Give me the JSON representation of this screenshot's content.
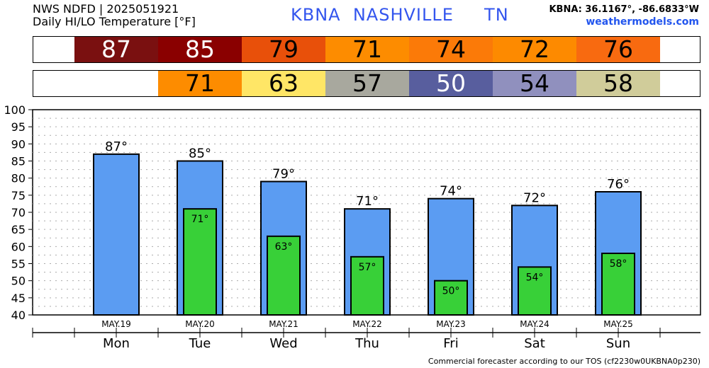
{
  "header": {
    "line1": "NWS NDFD | 2025051921",
    "line2": "Daily HI/LO Temperature [°F]",
    "station": "KBNA  NASHVILLE     TN",
    "coords": "KBNA: 36.1167°, -86.6833°W",
    "site": "weathermodels.com"
  },
  "strips": {
    "hi": [
      {
        "text": "87",
        "bg": "#7a1010",
        "fg": "#ffffff"
      },
      {
        "text": "85",
        "bg": "#8a0000",
        "fg": "#ffffff"
      },
      {
        "text": "79",
        "bg": "#e8500a",
        "fg": "#000000"
      },
      {
        "text": "71",
        "bg": "#fd8c00",
        "fg": "#000000"
      },
      {
        "text": "74",
        "bg": "#fb7a08",
        "fg": "#000000"
      },
      {
        "text": "72",
        "bg": "#fd8a00",
        "fg": "#000000"
      },
      {
        "text": "76",
        "bg": "#f86a10",
        "fg": "#000000"
      }
    ],
    "lo": [
      {
        "text": "71",
        "bg": "#fd8c00",
        "fg": "#000000"
      },
      {
        "text": "63",
        "bg": "#ffe666",
        "fg": "#000000"
      },
      {
        "text": "57",
        "bg": "#a8a89e",
        "fg": "#000000"
      },
      {
        "text": "50",
        "bg": "#585e9e",
        "fg": "#ffffff"
      },
      {
        "text": "54",
        "bg": "#9090be",
        "fg": "#000000"
      },
      {
        "text": "58",
        "bg": "#d0cc9a",
        "fg": "#000000"
      }
    ]
  },
  "chart_data": {
    "type": "bar",
    "ylim": [
      40,
      100
    ],
    "yticks": [
      40,
      45,
      50,
      55,
      60,
      65,
      70,
      75,
      80,
      85,
      90,
      95,
      100
    ],
    "dates": [
      "MAY.19",
      "MAY.20",
      "MAY.21",
      "MAY.22",
      "MAY.23",
      "MAY.24",
      "MAY.25"
    ],
    "days": [
      "Mon",
      "Tue",
      "Wed",
      "Thu",
      "Fri",
      "Sat",
      "Sun"
    ],
    "series": [
      {
        "values": [
          87,
          85,
          79,
          71,
          74,
          72,
          76
        ],
        "labels": [
          "87°",
          "85°",
          "79°",
          "71°",
          "74°",
          "72°",
          "76°"
        ]
      },
      {
        "values": [
          null,
          71,
          63,
          57,
          50,
          54,
          58
        ],
        "labels": [
          "",
          "71°",
          "63°",
          "57°",
          "50°",
          "54°",
          "58°"
        ]
      }
    ],
    "colors": {
      "hi": "#5b9cf2",
      "lo": "#38d038"
    },
    "grid": true
  },
  "footer": "Commercial forecaster according to our TOS (cf2230w0UKBNA0p230)"
}
